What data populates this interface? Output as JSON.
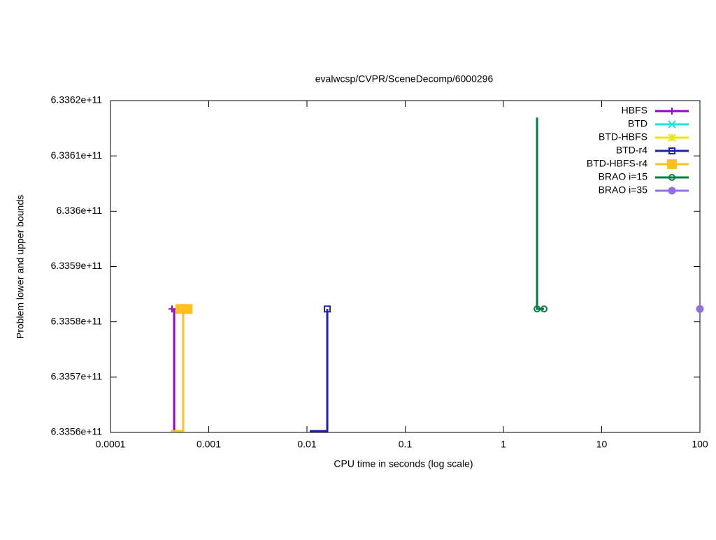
{
  "chart_data": {
    "type": "line",
    "title": "evalwcsp/CVPR/SceneDecomp/6000296",
    "x_label": "CPU time in seconds (log scale)",
    "y_label": "Problem lower and upper bounds",
    "x_log": true,
    "xlim": [
      0.0001,
      100
    ],
    "xticks": [
      0.0001,
      0.001,
      0.01,
      0.1,
      1,
      10,
      100
    ],
    "ylim": [
      633560000000,
      633620000000
    ],
    "yticks": [
      {
        "value": 633560000000,
        "label": "6.3356e+11"
      },
      {
        "value": 633570000000,
        "label": "6.3357e+11"
      },
      {
        "value": 633580000000,
        "label": "6.3358e+11"
      },
      {
        "value": 633590000000,
        "label": "6.3359e+11"
      },
      {
        "value": 633600000000,
        "label": "6.336e+11"
      },
      {
        "value": 633610000000,
        "label": "6.3361e+11"
      },
      {
        "value": 633620000000,
        "label": "6.3362e+11"
      }
    ],
    "legend": "top-right",
    "series": [
      {
        "name": "HBFS",
        "color": "#9400d3",
        "marker": "plus",
        "x": [
          0.00042,
          0.000445,
          0.000445
        ],
        "values": [
          633560240000,
          633560240000,
          633582320000
        ],
        "marker_x": [
          0.000423
        ],
        "marker_values": [
          633582320000
        ]
      },
      {
        "name": "BTD",
        "color": "#1ee3e3",
        "marker": "cross",
        "x": [],
        "values": [],
        "marker_x": [],
        "marker_values": []
      },
      {
        "name": "BTD-HBFS",
        "color": "#e8e800",
        "marker": "star",
        "x": [],
        "values": [],
        "marker_x": [],
        "marker_values": []
      },
      {
        "name": "BTD-r4",
        "color": "#2020b0",
        "marker": "square",
        "x": [
          0.01067,
          0.0161,
          0.0161
        ],
        "values": [
          633560240000,
          633560240000,
          633582320000
        ],
        "marker_x": [
          0.0161
        ],
        "marker_values": [
          633582320000
        ]
      },
      {
        "name": "BTD-HBFS-r4",
        "color": "#ffc020",
        "marker": "filled-square",
        "x": [
          0.000423,
          0.00055,
          0.00055,
          0.00061
        ],
        "values": [
          633560240000,
          633560240000,
          633582320000,
          633582320000
        ],
        "marker_x": [
          0.000515,
          0.00061
        ],
        "marker_values": [
          633582320000,
          633582320000
        ]
      },
      {
        "name": "BRAO i=15",
        "color": "#008040",
        "marker": "circle",
        "x": [
          2.2,
          2.2,
          2.59
        ],
        "values": [
          633616940000,
          633582320000,
          633582320000
        ],
        "marker_x": [
          2.2,
          2.59
        ],
        "marker_values": [
          633582320000,
          633582320000
        ]
      },
      {
        "name": "BRAO i=35",
        "color": "#9370db",
        "marker": "filled-circle",
        "x": [
          100
        ],
        "values": [
          633582320000
        ],
        "marker_x": [
          100
        ],
        "marker_values": [
          633582320000
        ]
      }
    ]
  }
}
